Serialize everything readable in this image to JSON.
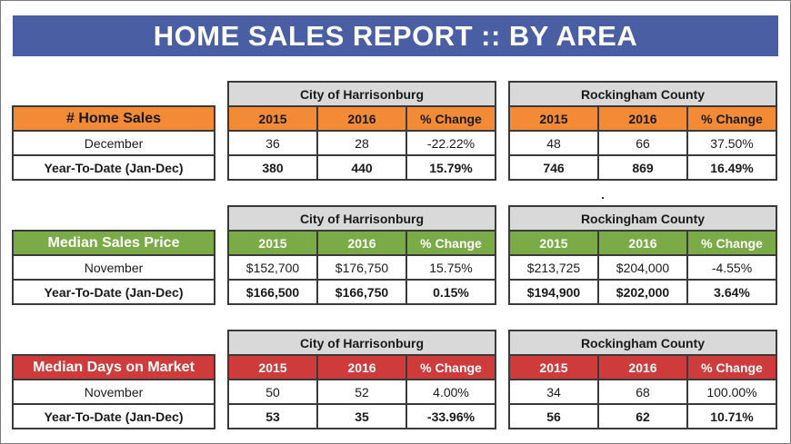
{
  "title": "HOME SALES REPORT  ::  BY AREA",
  "colors": {
    "banner": "#4a5fa3",
    "sales_header": "#f28a36",
    "price_header": "#7aab47",
    "days_header": "#cf3a3a",
    "area_header": "#d9d9d9"
  },
  "sections": [
    {
      "label": "# Home Sales",
      "area1": "City of Harrisonburg",
      "area2": "Rockingham County",
      "col_2015": "2015",
      "col_2016": "2016",
      "col_change": "% Change",
      "row1": {
        "label": "December",
        "a2015": "36",
        "a2016": "28",
        "achg": "-22.22%",
        "b2015": "48",
        "b2016": "66",
        "bchg": "37.50%"
      },
      "row2": {
        "label": "Year-To-Date (Jan-Dec)",
        "a2015": "380",
        "a2016": "440",
        "achg": "15.79%",
        "b2015": "746",
        "b2016": "869",
        "bchg": "16.49%"
      }
    },
    {
      "label": "Median Sales Price",
      "area1": "City of Harrisonburg",
      "area2": "Rockingham County",
      "col_2015": "2015",
      "col_2016": "2016",
      "col_change": "% Change",
      "row1": {
        "label": "November",
        "a2015": "$152,700",
        "a2016": "$176,750",
        "achg": "15.75%",
        "b2015": "$213,725",
        "b2016": "$204,000",
        "bchg": "-4.55%"
      },
      "row2": {
        "label": "Year-To-Date (Jan-Dec)",
        "a2015": "$166,500",
        "a2016": "$166,750",
        "achg": "0.15%",
        "b2015": "$194,900",
        "b2016": "$202,000",
        "bchg": "3.64%"
      }
    },
    {
      "label": "Median Days on Market",
      "area1": "City of Harrisonburg",
      "area2": "Rockingham County",
      "col_2015": "2015",
      "col_2016": "2016",
      "col_change": "% Change",
      "row1": {
        "label": "November",
        "a2015": "50",
        "a2016": "52",
        "achg": "4.00%",
        "b2015": "34",
        "b2016": "68",
        "bchg": "100.00%"
      },
      "row2": {
        "label": "Year-To-Date (Jan-Dec)",
        "a2015": "53",
        "a2016": "35",
        "achg": "-33.96%",
        "b2015": "56",
        "b2016": "62",
        "bchg": "10.71%"
      }
    }
  ]
}
